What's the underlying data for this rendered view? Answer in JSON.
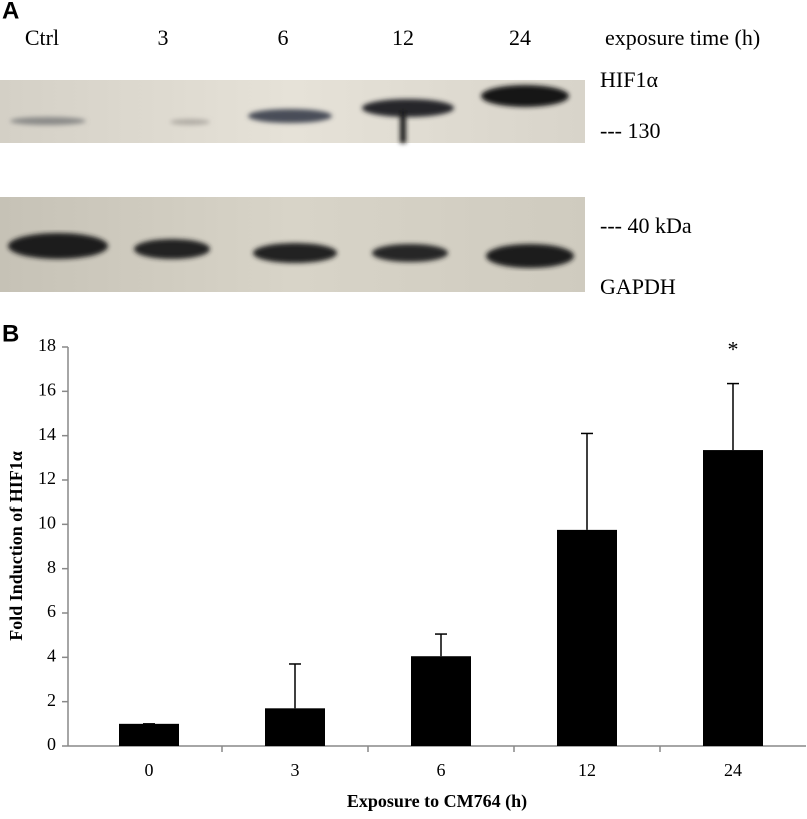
{
  "panel_a": {
    "label": "A",
    "lanes": [
      "Ctrl",
      "3",
      "6",
      "12",
      "24"
    ],
    "lane_axis_label": "exposure time (h)",
    "blot_labels": [
      "HIF1α",
      "--- 130",
      "--- 40 kDa",
      "GAPDH"
    ]
  },
  "chart_data": {
    "type": "bar",
    "panel_label": "B",
    "categories": [
      "0",
      "3",
      "6",
      "12",
      "24"
    ],
    "values": [
      1.0,
      1.7,
      4.05,
      9.75,
      13.35
    ],
    "errors": [
      0,
      2.0,
      1.0,
      4.35,
      3.0
    ],
    "color": "#000000",
    "ylim": [
      0,
      18
    ],
    "yticks": [
      0,
      2,
      4,
      6,
      8,
      10,
      12,
      14,
      16,
      18
    ],
    "ylabel": "Fold Induction of HIF1α",
    "xlabel": "Exposure to CM764 (h)",
    "annotations": [
      {
        "text": "*",
        "x": "24"
      }
    ]
  }
}
